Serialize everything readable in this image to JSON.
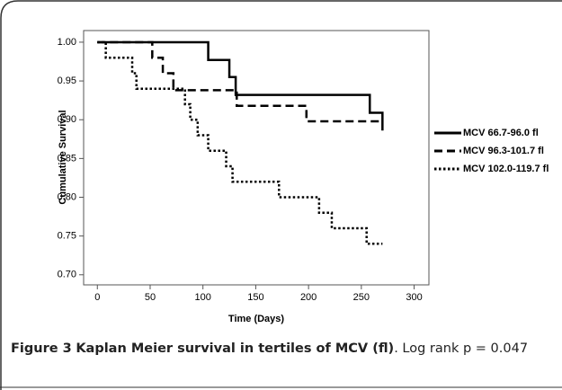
{
  "chart_data": {
    "type": "step",
    "x_label": "Time (Days)",
    "y_label": "Cumulative Survival",
    "xlim": [
      -13,
      314
    ],
    "ylim": [
      0.687,
      1.015
    ],
    "xticks": [
      0,
      50,
      100,
      150,
      200,
      250,
      300
    ],
    "yticks": [
      {
        "value": 0.7,
        "label": "0.70"
      },
      0.75,
      {
        "value": 0.8,
        "label": "0.80"
      },
      0.85,
      {
        "value": 0.9,
        "label": "0.90"
      },
      0.95,
      {
        "value": 1,
        "label": "1.00"
      }
    ],
    "series": [
      {
        "name": "MCV 66.7-96.0 fl",
        "color": "#000000",
        "dash": "solid",
        "x": [
          0,
          105,
          105,
          125,
          125,
          131,
          131,
          258,
          258,
          270,
          270
        ],
        "values": [
          1,
          1,
          0.977,
          0.977,
          0.955,
          0.955,
          0.932,
          0.932,
          0.909,
          0.909,
          0.886
        ]
      },
      {
        "name": "MCV 96.3-101.7 fl",
        "color": "#000000",
        "dash": "dashed",
        "x": [
          0,
          52,
          52,
          62,
          62,
          72,
          72,
          132,
          132,
          198,
          198,
          270
        ],
        "values": [
          1,
          1,
          0.98,
          0.98,
          0.96,
          0.96,
          0.938,
          0.938,
          0.918,
          0.918,
          0.898,
          0.898
        ]
      },
      {
        "name": "MCV 102.0-119.7 fl",
        "color": "#000000",
        "dash": "dotted",
        "x": [
          0,
          8,
          8,
          33,
          33,
          37,
          37,
          83,
          83,
          88,
          88,
          95,
          95,
          105,
          105,
          122,
          122,
          128,
          128,
          172,
          172,
          210,
          210,
          222,
          222,
          255,
          255,
          270
        ],
        "values": [
          1,
          1,
          0.98,
          0.98,
          0.96,
          0.96,
          0.94,
          0.94,
          0.92,
          0.92,
          0.9,
          0.9,
          0.88,
          0.88,
          0.86,
          0.86,
          0.84,
          0.84,
          0.82,
          0.82,
          0.8,
          0.8,
          0.78,
          0.78,
          0.76,
          0.76,
          0.74,
          0.74
        ]
      }
    ]
  },
  "caption": {
    "label": "Figure 3",
    "title": "Kaplan Meier survival in tertiles of MCV (fl)",
    "text": ". Log rank p = 0.047"
  }
}
